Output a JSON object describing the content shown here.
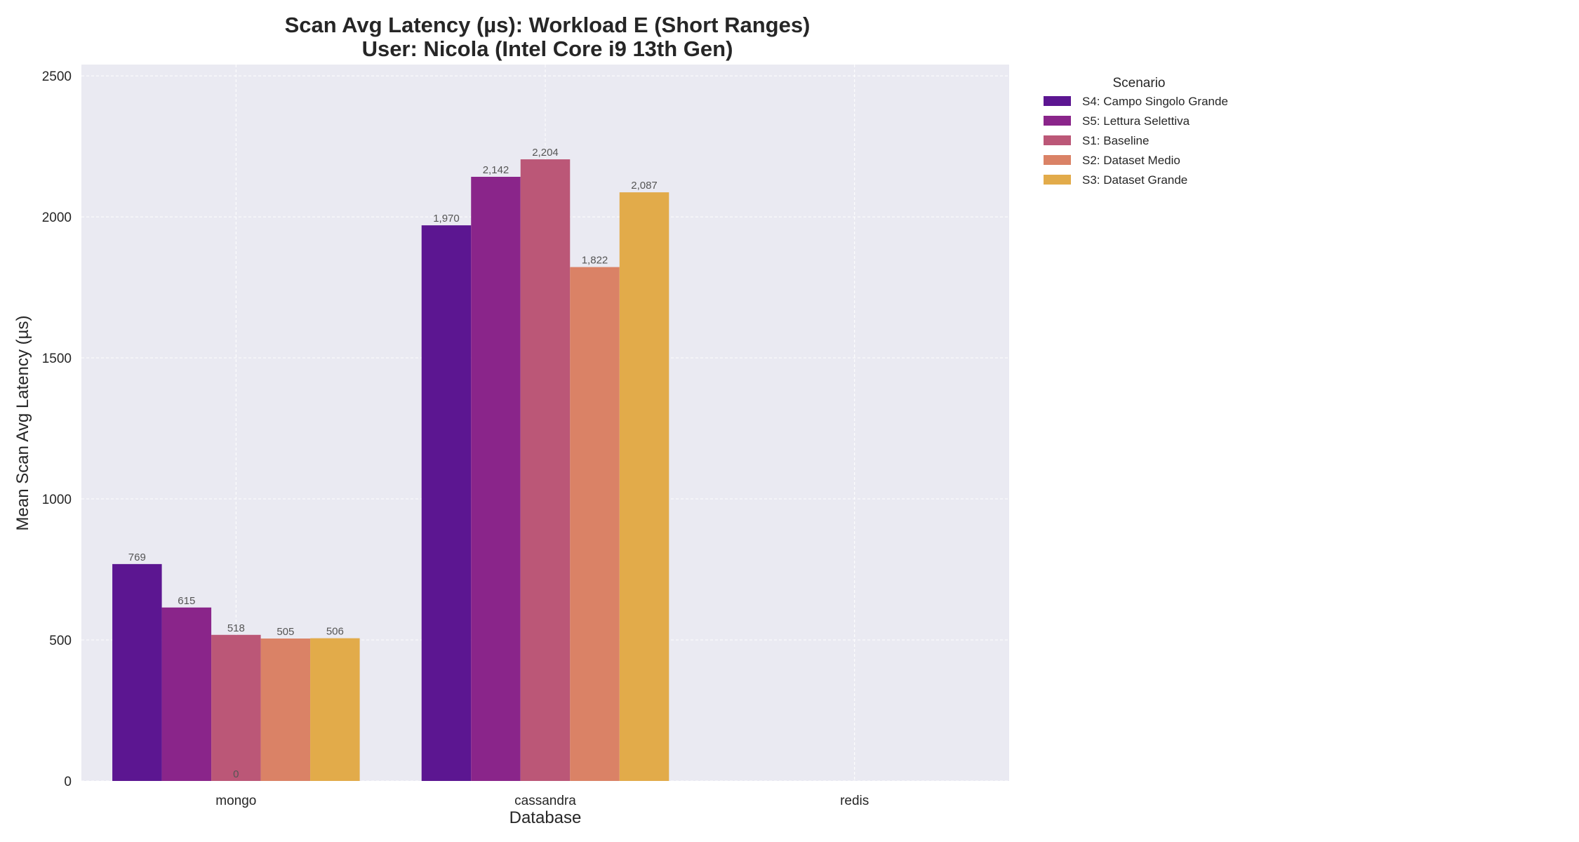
{
  "chart_data": {
    "type": "bar",
    "title": "Scan Avg Latency (µs): Workload E (Short Ranges)",
    "subtitle": "User: Nicola (Intel Core i9 13th Gen)",
    "xlabel": "Database",
    "ylabel": "Mean Scan Avg Latency (µs)",
    "categories": [
      "mongo",
      "cassandra",
      "redis"
    ],
    "ylim": [
      0,
      2540
    ],
    "yticks": [
      0,
      500,
      1000,
      1500,
      2000,
      2500
    ],
    "grid": true,
    "legend_title": "Scenario",
    "legend_position": "outside-top-right",
    "series": [
      {
        "name": "S4: Campo Singolo Grande",
        "color": "#5c1691",
        "values": [
          769,
          1970,
          null
        ],
        "labels": [
          "769",
          "1,970",
          ""
        ]
      },
      {
        "name": "S5: Lettura Selettiva",
        "color": "#8a258a",
        "values": [
          615,
          2142,
          null
        ],
        "labels": [
          "615",
          "2,142",
          ""
        ]
      },
      {
        "name": "S1: Baseline",
        "color": "#bb5777",
        "values": [
          518,
          2204,
          null
        ],
        "labels": [
          "518",
          "2,204",
          ""
        ]
      },
      {
        "name": "S2: Dataset Medio",
        "color": "#da8266",
        "values": [
          505,
          1822,
          null
        ],
        "labels": [
          "505",
          "1,822",
          ""
        ]
      },
      {
        "name": "S3: Dataset Grande",
        "color": "#e2ab4a",
        "values": [
          506,
          2087,
          null
        ],
        "labels": [
          "506",
          "2,087",
          ""
        ]
      }
    ],
    "annotations": [
      {
        "text": "0",
        "category": "mongo",
        "value": 0
      }
    ]
  },
  "colors": {
    "plot_background": "#eaeaf2",
    "grid": "#ffffff",
    "label_text": "#555555"
  }
}
